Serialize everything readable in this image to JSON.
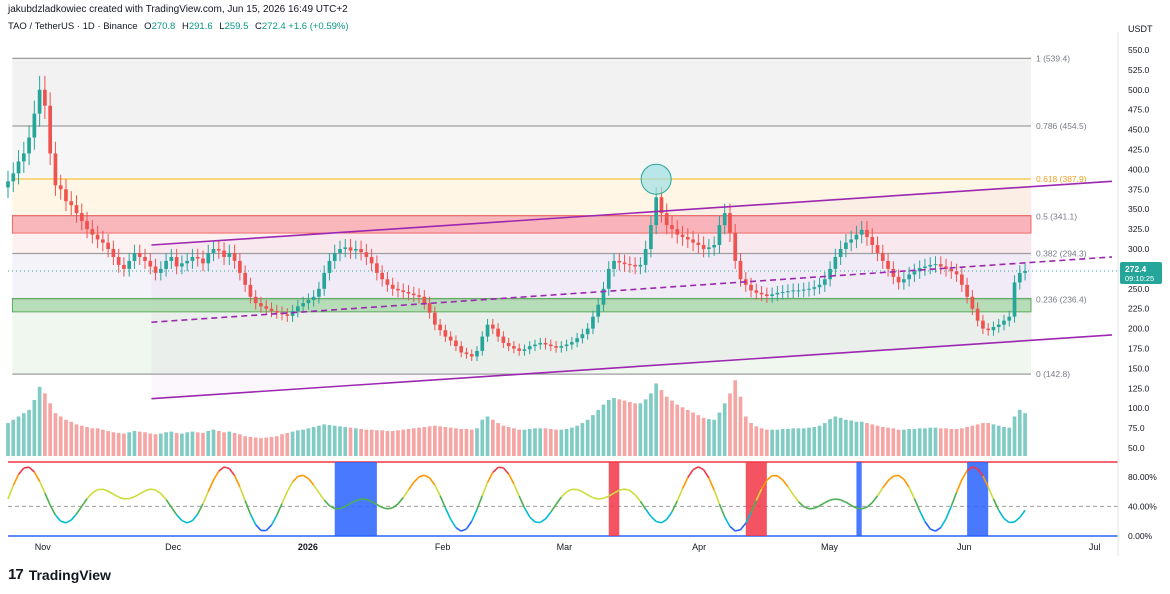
{
  "header": {
    "credit": "jakubdzladkowiec created with TradingView.com, Jun 15, 2026 16:49 UTC+2",
    "symbol": "TAO / TetherUS · 1D · Binance",
    "o_label": "O",
    "o_value": "270.8",
    "h_label": "H",
    "h_value": "291.6",
    "l_label": "L",
    "l_value": "259.5",
    "c_label": "C",
    "c_value": "272.4",
    "change": "+1.6 (+0.59%)"
  },
  "price_axis": {
    "currency": "USDT",
    "ticks": [
      "550.0",
      "525.0",
      "500.0",
      "475.0",
      "450.0",
      "425.0",
      "400.0",
      "375.0",
      "350.0",
      "325.0",
      "300.0",
      "275.0",
      "250.0",
      "225.0",
      "200.0",
      "175.0",
      "150.0",
      "125.0",
      "100.0",
      "75.0",
      "50.0"
    ],
    "current_price": "272.4",
    "countdown": "09:10:25"
  },
  "osc_axis": {
    "ticks": [
      "80.00%",
      "40.00%",
      "0.00%"
    ]
  },
  "time_axis": {
    "ticks": [
      "Nov",
      "Dec",
      "2026",
      "Feb",
      "Mar",
      "Apr",
      "May",
      "Jun",
      "Jul"
    ]
  },
  "fib_levels": [
    {
      "label": "1 (539.4)",
      "value": 539.4
    },
    {
      "label": "0.786 (454.5)",
      "value": 454.5
    },
    {
      "label": "0.618 (387.9)",
      "value": 387.9
    },
    {
      "label": "0.5 (341.1)",
      "value": 341.1
    },
    {
      "label": "0.382 (294.3)",
      "value": 294.3
    },
    {
      "label": "0.236 (236.4)",
      "value": 236.4
    },
    {
      "label": "0 (142.8)",
      "value": 142.8
    }
  ],
  "colors": {
    "up": "#26a69a",
    "down": "#ef5350",
    "channel": "#9c27b0",
    "fib_gold": "#f5c242",
    "resistance_zone": "#f7a1a8",
    "support_zone": "#a5d6a7",
    "osc_top_line": "#f23645",
    "osc_bottom_line": "#2962ff"
  },
  "footer": {
    "logo_mark": "17",
    "logo_text": "TradingView"
  },
  "chart_data": {
    "type": "candlestick",
    "symbol": "TAO/USDT",
    "timeframe": "1D",
    "y_range": [
      40,
      565
    ],
    "x_range_dates": [
      "2025-10-24",
      "2026-07-05"
    ],
    "candle_dates": [
      "2025-10-24",
      "2026-06-15"
    ],
    "closes": [
      385,
      395,
      410,
      420,
      440,
      470,
      500,
      480,
      420,
      380,
      375,
      360,
      355,
      345,
      335,
      325,
      318,
      312,
      308,
      300,
      290,
      280,
      275,
      285,
      295,
      290,
      285,
      278,
      270,
      275,
      285,
      290,
      278,
      282,
      285,
      290,
      288,
      282,
      295,
      300,
      298,
      290,
      295,
      285,
      270,
      255,
      240,
      232,
      228,
      225,
      222,
      220,
      218,
      216,
      222,
      228,
      232,
      236,
      240,
      250,
      270,
      285,
      295,
      300,
      302,
      298,
      300,
      296,
      290,
      282,
      270,
      262,
      255,
      250,
      248,
      246,
      244,
      242,
      240,
      232,
      220,
      205,
      198,
      190,
      185,
      178,
      170,
      168,
      165,
      172,
      190,
      205,
      200,
      190,
      182,
      178,
      175,
      172,
      174,
      178,
      180,
      182,
      180,
      178,
      176,
      178,
      180,
      183,
      188,
      193,
      200,
      215,
      230,
      250,
      275,
      285,
      283,
      281,
      280,
      278,
      280,
      300,
      330,
      365,
      345,
      330,
      325,
      318,
      315,
      312,
      308,
      305,
      300,
      302,
      305,
      330,
      345,
      320,
      285,
      262,
      255,
      248,
      245,
      243,
      241,
      243,
      245,
      246,
      247,
      248,
      248,
      249,
      250,
      252,
      255,
      262,
      275,
      290,
      300,
      308,
      312,
      318,
      324,
      315,
      305,
      295,
      285,
      275,
      265,
      258,
      262,
      268,
      272,
      276,
      278,
      280,
      281,
      278,
      275,
      272,
      268,
      255,
      240,
      225,
      210,
      200,
      198,
      202,
      205,
      210,
      215,
      258,
      270,
      272.4
    ],
    "volume_range": [
      0,
      170
    ],
    "volumes": [
      50,
      55,
      60,
      65,
      70,
      85,
      105,
      95,
      80,
      65,
      60,
      55,
      52,
      48,
      46,
      44,
      42,
      42,
      40,
      38,
      36,
      35,
      34,
      36,
      38,
      37,
      36,
      34,
      33,
      34,
      36,
      37,
      35,
      34,
      36,
      37,
      36,
      35,
      38,
      40,
      38,
      36,
      37,
      35,
      33,
      30,
      29,
      28,
      27,
      28,
      29,
      30,
      33,
      35,
      37,
      39,
      40,
      42,
      44,
      46,
      48,
      47,
      46,
      45,
      44,
      43,
      42,
      41,
      40,
      40,
      39,
      39,
      38,
      38,
      39,
      40,
      41,
      42,
      43,
      44,
      45,
      46,
      45,
      44,
      43,
      42,
      41,
      41,
      40,
      42,
      55,
      60,
      55,
      50,
      46,
      44,
      42,
      40,
      40,
      41,
      42,
      42,
      42,
      41,
      40,
      40,
      41,
      43,
      46,
      50,
      55,
      62,
      70,
      78,
      85,
      88,
      86,
      84,
      82,
      80,
      80,
      86,
      95,
      110,
      100,
      90,
      84,
      78,
      74,
      70,
      66,
      62,
      58,
      56,
      55,
      66,
      80,
      95,
      115,
      90,
      60,
      50,
      45,
      42,
      40,
      40,
      40,
      41,
      41,
      42,
      42,
      42,
      43,
      44,
      46,
      50,
      56,
      60,
      58,
      55,
      54,
      52,
      52,
      50,
      48,
      46,
      44,
      43,
      42,
      40,
      40,
      41,
      41,
      42,
      42,
      43,
      43,
      42,
      42,
      41,
      41,
      42,
      44,
      46,
      48,
      50,
      50,
      48,
      46,
      44,
      43,
      60,
      70,
      65
    ],
    "fibonacci": [
      {
        "ratio": 1,
        "price": 539.4
      },
      {
        "ratio": 0.786,
        "price": 454.5
      },
      {
        "ratio": 0.618,
        "price": 387.9
      },
      {
        "ratio": 0.5,
        "price": 341.1
      },
      {
        "ratio": 0.382,
        "price": 294.3
      },
      {
        "ratio": 0.236,
        "price": 236.4
      },
      {
        "ratio": 0,
        "price": 142.8
      }
    ],
    "zones": [
      {
        "kind": "resistance",
        "from": 320,
        "to": 342
      },
      {
        "kind": "support",
        "from": 221,
        "to": 238
      }
    ],
    "channel_lines": [
      {
        "style": "solid",
        "from": [
          "2025-11-26",
          305
        ],
        "to": [
          "2026-07-05",
          385
        ]
      },
      {
        "style": "solid",
        "from": [
          "2025-11-26",
          112
        ],
        "to": [
          "2026-07-05",
          192
        ]
      },
      {
        "style": "dashed",
        "from": [
          "2025-11-26",
          208
        ],
        "to": [
          "2026-07-05",
          290
        ]
      }
    ],
    "oscillator": {
      "y_range": [
        0,
        100
      ],
      "upper_band": 80,
      "lower_band": 0,
      "mid_level": 40
    }
  }
}
